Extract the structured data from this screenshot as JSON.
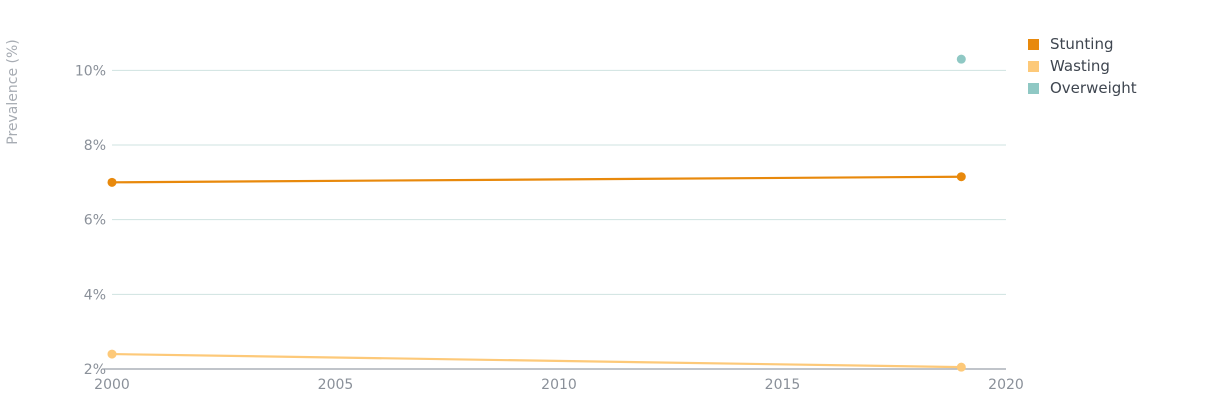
{
  "chart_data": {
    "type": "line",
    "ylabel": "Prevalence (%)",
    "xlim": [
      2000,
      2020
    ],
    "ylim": [
      2,
      11
    ],
    "x_ticks": [
      2000,
      2005,
      2010,
      2015,
      2020
    ],
    "y_ticks": [
      {
        "value": 2,
        "label": "2%"
      },
      {
        "value": 4,
        "label": "4%"
      },
      {
        "value": 6,
        "label": "6%"
      },
      {
        "value": 8,
        "label": "8%"
      },
      {
        "value": 10,
        "label": "10%"
      }
    ],
    "grid": true,
    "legend_position": "top-right",
    "series": [
      {
        "name": "Stunting",
        "color": "#e8890c",
        "points": [
          {
            "x": 2000,
            "y": 7.0
          },
          {
            "x": 2019,
            "y": 7.15
          }
        ]
      },
      {
        "name": "Wasting",
        "color": "#fdc979",
        "points": [
          {
            "x": 2000,
            "y": 2.4
          },
          {
            "x": 2019,
            "y": 2.05
          }
        ]
      },
      {
        "name": "Overweight",
        "color": "#8fc8c4",
        "points": [
          {
            "x": 2019,
            "y": 10.3
          }
        ]
      }
    ]
  }
}
